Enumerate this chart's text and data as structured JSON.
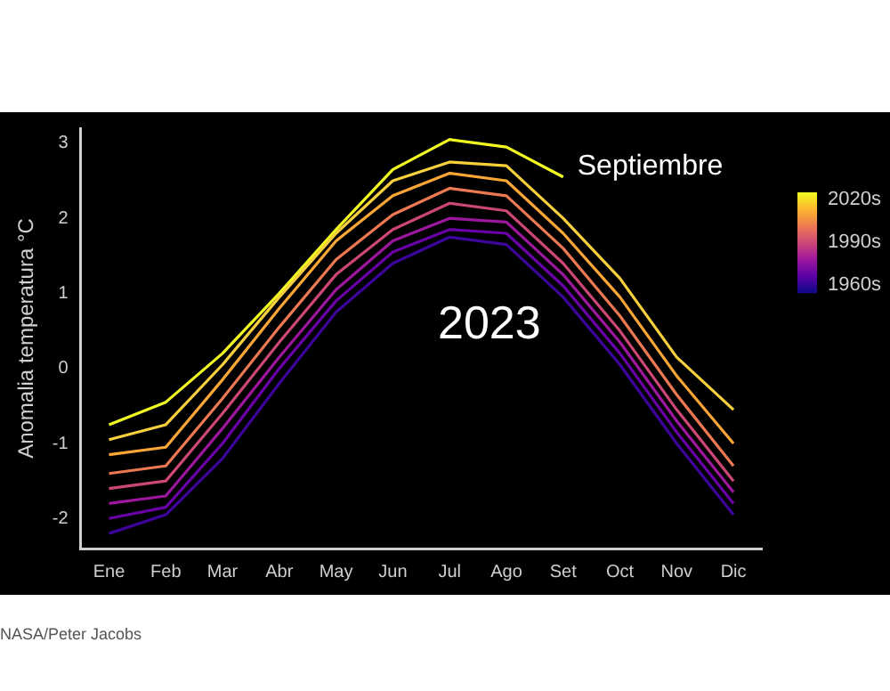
{
  "chart_data": {
    "type": "line",
    "ylabel": "Anomalia temperatura °C",
    "categories": [
      "Ene",
      "Feb",
      "Mar",
      "Abr",
      "May",
      "Jun",
      "Jul",
      "Ago",
      "Set",
      "Oct",
      "Nov",
      "Dic"
    ],
    "ylim": [
      -2.4,
      3.2
    ],
    "yticks": [
      -2,
      -1,
      0,
      1,
      2,
      3
    ],
    "clim": [
      1955,
      2025
    ],
    "cticks": [
      {
        "value": 1960,
        "label": "1960s"
      },
      {
        "value": 1990,
        "label": "1990s"
      },
      {
        "value": 2020,
        "label": "2020s"
      }
    ],
    "series": [
      {
        "color": "#3d049b",
        "values": [
          -2.2,
          -1.95,
          -1.2,
          -0.2,
          0.75,
          1.4,
          1.75,
          1.65,
          0.95,
          0.05,
          -1.0,
          -1.95
        ]
      },
      {
        "color": "#6a00a8",
        "values": [
          -2.0,
          -1.85,
          -1.0,
          0.0,
          0.9,
          1.55,
          1.85,
          1.8,
          1.1,
          0.2,
          -0.85,
          -1.8
        ]
      },
      {
        "color": "#9c179e",
        "values": [
          -1.8,
          -1.7,
          -0.8,
          0.15,
          1.05,
          1.7,
          2.0,
          1.95,
          1.25,
          0.35,
          -0.7,
          -1.65
        ]
      },
      {
        "color": "#cc4778",
        "values": [
          -1.6,
          -1.5,
          -0.6,
          0.35,
          1.25,
          1.85,
          2.2,
          2.1,
          1.4,
          0.5,
          -0.55,
          -1.5
        ]
      },
      {
        "color": "#ed7953",
        "values": [
          -1.4,
          -1.3,
          -0.4,
          0.55,
          1.45,
          2.05,
          2.4,
          2.3,
          1.6,
          0.7,
          -0.35,
          -1.3
        ]
      },
      {
        "color": "#fca636",
        "values": [
          -1.15,
          -1.05,
          -0.15,
          0.8,
          1.7,
          2.3,
          2.6,
          2.5,
          1.8,
          0.95,
          -0.1,
          -1.0
        ]
      },
      {
        "color": "#f7d03c",
        "values": [
          -0.95,
          -0.75,
          0.05,
          0.95,
          1.8,
          2.5,
          2.75,
          2.7,
          2.0,
          1.2,
          0.15,
          -0.55
        ]
      },
      {
        "color": "#f0f921",
        "values": [
          -0.75,
          -0.45,
          0.2,
          1.0,
          1.85,
          2.65,
          3.05,
          2.95,
          2.55,
          null,
          null,
          null
        ]
      }
    ],
    "annotations": [
      {
        "text": "Septiembre",
        "x": "Set",
        "y": 2.55
      },
      "2023",
      "NASA/Peter Jacobs"
    ],
    "legend": false,
    "grid": false,
    "marker": "none",
    "line_style": "solid"
  }
}
